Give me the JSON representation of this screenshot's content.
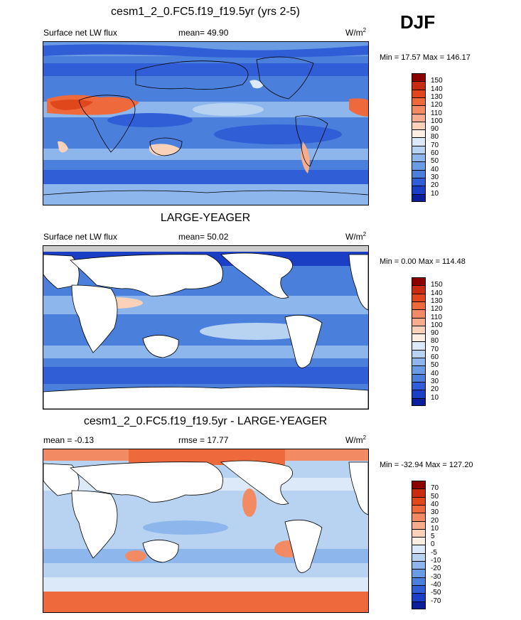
{
  "season": "DJF",
  "panels": [
    {
      "title": "cesm1_2_0.FC5.f19_f19.5yr (yrs 2-5)",
      "left_label": "Surface net LW flux",
      "mid_label": "mean=  49.90",
      "units": "W/m",
      "units_sup": "2",
      "minmax": "Min =  17.57 Max = 146.17",
      "colorbar_labels": [
        "150",
        "140",
        "130",
        "120",
        "110",
        "100",
        "90",
        "80",
        "70",
        "60",
        "50",
        "40",
        "30",
        "20",
        "10"
      ],
      "colorbar_colors": [
        "#8b0000",
        "#c82c10",
        "#e0481c",
        "#ee6a3c",
        "#f28a64",
        "#f7ad8d",
        "#fbd2b9",
        "#fdeee3",
        "#dbe9f8",
        "#b8d3f2",
        "#8db7ec",
        "#6a9ce4",
        "#4a7fdc",
        "#2f5ed6",
        "#1a3fc4",
        "#0a1f99"
      ]
    },
    {
      "title": "LARGE-YEAGER",
      "left_label": "Surface net LW flux",
      "mid_label": "mean=  50.02",
      "units": "W/m",
      "units_sup": "2",
      "minmax": "Min =   0.00 Max = 114.48",
      "colorbar_labels": [
        "150",
        "140",
        "130",
        "120",
        "110",
        "100",
        "90",
        "80",
        "70",
        "60",
        "50",
        "40",
        "30",
        "20",
        "10"
      ],
      "colorbar_colors": [
        "#8b0000",
        "#c82c10",
        "#e0481c",
        "#ee6a3c",
        "#f28a64",
        "#f7ad8d",
        "#fbd2b9",
        "#fdeee3",
        "#dbe9f8",
        "#b8d3f2",
        "#8db7ec",
        "#6a9ce4",
        "#4a7fdc",
        "#2f5ed6",
        "#1a3fc4",
        "#0a1f99"
      ]
    },
    {
      "title": "cesm1_2_0.FC5.f19_f19.5yr - LARGE-YEAGER",
      "left_label": "mean =  -0.13",
      "mid_label": "rmse =  17.77",
      "units": "W/m",
      "units_sup": "2",
      "minmax": "Min = -32.94 Max = 127.20",
      "colorbar_labels": [
        "70",
        "50",
        "40",
        "30",
        "20",
        "10",
        "5",
        "0",
        "-5",
        "-10",
        "-20",
        "-30",
        "-40",
        "-50",
        "-70"
      ],
      "colorbar_colors": [
        "#8b0000",
        "#c82c10",
        "#e0481c",
        "#ee6a3c",
        "#f28a64",
        "#f7ad8d",
        "#fbd2b9",
        "#fdeee3",
        "#dbe9f8",
        "#b8d3f2",
        "#8db7ec",
        "#6a9ce4",
        "#4a7fdc",
        "#2f5ed6",
        "#1a3fc4",
        "#0a1f99"
      ]
    }
  ],
  "chart_data": [
    {
      "type": "heatmap",
      "title": "cesm1_2_0.FC5.f19_f19.5yr (yrs 2-5)",
      "variable": "Surface net LW flux",
      "units": "W/m2",
      "mean": 49.9,
      "min": 17.57,
      "max": 146.17,
      "levels": [
        10,
        20,
        30,
        40,
        50,
        60,
        70,
        80,
        90,
        100,
        110,
        120,
        130,
        140,
        150
      ]
    },
    {
      "type": "heatmap",
      "title": "LARGE-YEAGER",
      "variable": "Surface net LW flux",
      "units": "W/m2",
      "mean": 50.02,
      "min": 0.0,
      "max": 114.48,
      "levels": [
        10,
        20,
        30,
        40,
        50,
        60,
        70,
        80,
        90,
        100,
        110,
        120,
        130,
        140,
        150
      ]
    },
    {
      "type": "heatmap",
      "title": "cesm1_2_0.FC5.f19_f19.5yr - LARGE-YEAGER",
      "units": "W/m2",
      "mean": -0.13,
      "rmse": 17.77,
      "min": -32.94,
      "max": 127.2,
      "levels": [
        -70,
        -50,
        -40,
        -30,
        -20,
        -10,
        -5,
        0,
        5,
        10,
        20,
        30,
        40,
        50,
        70
      ]
    }
  ]
}
